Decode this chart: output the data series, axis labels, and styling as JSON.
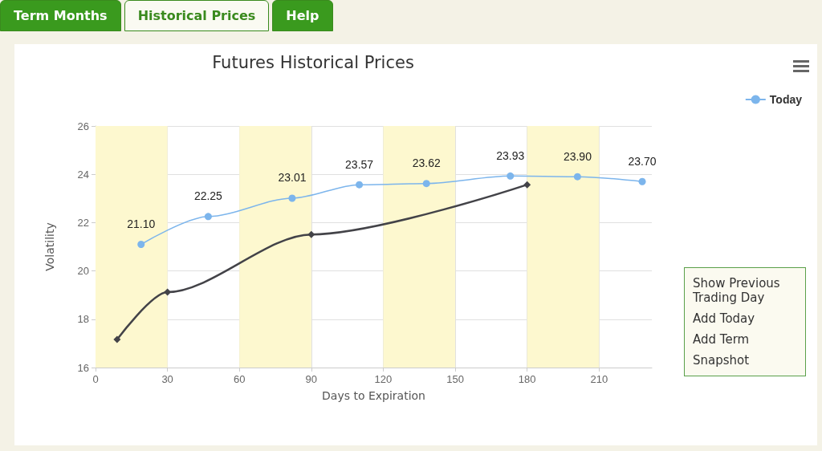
{
  "chart_data": {
    "type": "line",
    "title": "Futures Historical Prices",
    "xlabel": "Days to Expiration",
    "ylabel": "Volatility",
    "xlim": [
      0,
      232
    ],
    "xticks": [
      0,
      30,
      60,
      90,
      120,
      150,
      180,
      210
    ],
    "ylim": [
      16,
      26
    ],
    "yticks": [
      16,
      18,
      20,
      22,
      24,
      26
    ],
    "grid": true,
    "legend": "top right",
    "bands": [
      {
        "axis": "x",
        "from": 0,
        "to": 30,
        "color": "#fdf8cf"
      },
      {
        "axis": "x",
        "from": 60,
        "to": 90,
        "color": "#fdf8cf"
      },
      {
        "axis": "x",
        "from": 120,
        "to": 150,
        "color": "#fdf8cf"
      },
      {
        "axis": "x",
        "from": 180,
        "to": 210,
        "color": "#fdf8cf"
      }
    ],
    "series": [
      {
        "name": "Today",
        "color": "#7cb5ec",
        "marker": "circle",
        "x": [
          19,
          47,
          82,
          110,
          138,
          173,
          201,
          228
        ],
        "values": [
          21.1,
          22.25,
          23.01,
          23.57,
          23.62,
          23.93,
          23.9,
          23.7
        ],
        "value_labels": [
          "21.10",
          "22.25",
          "23.01",
          "23.57",
          "23.62",
          "23.93",
          "23.90",
          "23.70"
        ]
      },
      {
        "color": "#434348",
        "marker": "diamond",
        "x": [
          9,
          30,
          90,
          180
        ],
        "values": [
          17.16,
          19.12,
          21.51,
          23.57
        ]
      }
    ],
    "annotations": [
      "Term Months",
      "Historical Prices",
      "Help",
      "Show Previous Trading Day",
      "Add Today",
      "Add Term",
      "Snapshot"
    ]
  }
}
